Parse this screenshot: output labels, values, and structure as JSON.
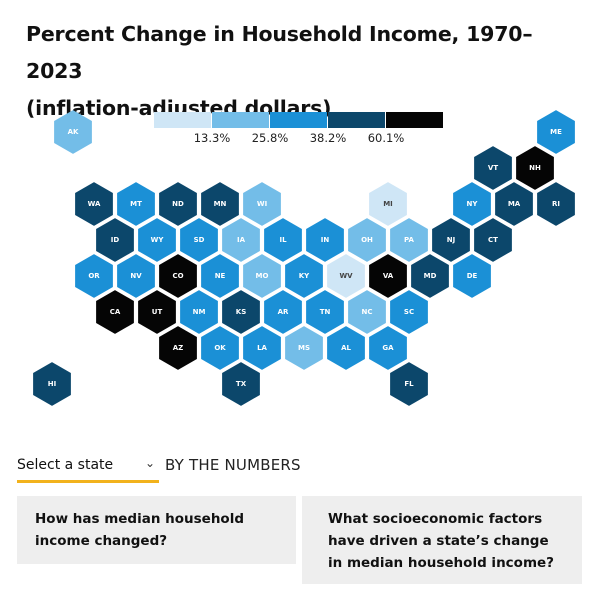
{
  "title_line1": "Percent Change in Household Income, 1970–2023",
  "title_line2": "(inflation-adjusted dollars)",
  "colors": {
    "bin0": "#cfe6f6",
    "bin1": "#73bde8",
    "bin2": "#1b90d6",
    "bin3": "#0c476b",
    "bin4": "#050505",
    "text_on_light": "#444444",
    "text_on_dark": "#ffffff",
    "accent_underline": "#f2b21c",
    "card_bg": "#eeeeee"
  },
  "chart_data": {
    "type": "hex tile choropleth map",
    "legend": {
      "thresholds": [
        "13.3%",
        "25.8%",
        "38.2%",
        "60.1%"
      ],
      "bins": 5
    },
    "states": [
      {
        "abbr": "AK",
        "col": 0.5,
        "row": 0,
        "bin": 1
      },
      {
        "abbr": "ME",
        "col": 12,
        "row": 0,
        "bin": 2
      },
      {
        "abbr": "VT",
        "col": 10.5,
        "row": 1,
        "bin": 3
      },
      {
        "abbr": "NH",
        "col": 11.5,
        "row": 1,
        "bin": 4
      },
      {
        "abbr": "WA",
        "col": 1,
        "row": 2,
        "bin": 3
      },
      {
        "abbr": "MT",
        "col": 2,
        "row": 2,
        "bin": 2
      },
      {
        "abbr": "ND",
        "col": 3,
        "row": 2,
        "bin": 3
      },
      {
        "abbr": "MN",
        "col": 4,
        "row": 2,
        "bin": 3
      },
      {
        "abbr": "WI",
        "col": 5,
        "row": 2,
        "bin": 1
      },
      {
        "abbr": "MI",
        "col": 8,
        "row": 2,
        "bin": 0
      },
      {
        "abbr": "NY",
        "col": 10,
        "row": 2,
        "bin": 2
      },
      {
        "abbr": "MA",
        "col": 11,
        "row": 2,
        "bin": 3
      },
      {
        "abbr": "RI",
        "col": 12,
        "row": 2,
        "bin": 3
      },
      {
        "abbr": "ID",
        "col": 1.5,
        "row": 3,
        "bin": 3
      },
      {
        "abbr": "WY",
        "col": 2.5,
        "row": 3,
        "bin": 2
      },
      {
        "abbr": "SD",
        "col": 3.5,
        "row": 3,
        "bin": 2
      },
      {
        "abbr": "IA",
        "col": 4.5,
        "row": 3,
        "bin": 1
      },
      {
        "abbr": "IL",
        "col": 5.5,
        "row": 3,
        "bin": 2
      },
      {
        "abbr": "IN",
        "col": 6.5,
        "row": 3,
        "bin": 2
      },
      {
        "abbr": "OH",
        "col": 7.5,
        "row": 3,
        "bin": 1
      },
      {
        "abbr": "PA",
        "col": 8.5,
        "row": 3,
        "bin": 1
      },
      {
        "abbr": "NJ",
        "col": 9.5,
        "row": 3,
        "bin": 3
      },
      {
        "abbr": "CT",
        "col": 10.5,
        "row": 3,
        "bin": 3
      },
      {
        "abbr": "OR",
        "col": 1,
        "row": 4,
        "bin": 2
      },
      {
        "abbr": "NV",
        "col": 2,
        "row": 4,
        "bin": 2
      },
      {
        "abbr": "CO",
        "col": 3,
        "row": 4,
        "bin": 4
      },
      {
        "abbr": "NE",
        "col": 4,
        "row": 4,
        "bin": 2
      },
      {
        "abbr": "MO",
        "col": 5,
        "row": 4,
        "bin": 1
      },
      {
        "abbr": "KY",
        "col": 6,
        "row": 4,
        "bin": 2
      },
      {
        "abbr": "WV",
        "col": 7,
        "row": 4,
        "bin": 0
      },
      {
        "abbr": "VA",
        "col": 8,
        "row": 4,
        "bin": 4
      },
      {
        "abbr": "MD",
        "col": 9,
        "row": 4,
        "bin": 3
      },
      {
        "abbr": "DE",
        "col": 10,
        "row": 4,
        "bin": 2
      },
      {
        "abbr": "CA",
        "col": 1.5,
        "row": 5,
        "bin": 4
      },
      {
        "abbr": "UT",
        "col": 2.5,
        "row": 5,
        "bin": 4
      },
      {
        "abbr": "NM",
        "col": 3.5,
        "row": 5,
        "bin": 2
      },
      {
        "abbr": "KS",
        "col": 4.5,
        "row": 5,
        "bin": 3
      },
      {
        "abbr": "AR",
        "col": 5.5,
        "row": 5,
        "bin": 2
      },
      {
        "abbr": "TN",
        "col": 6.5,
        "row": 5,
        "bin": 2
      },
      {
        "abbr": "NC",
        "col": 7.5,
        "row": 5,
        "bin": 1
      },
      {
        "abbr": "SC",
        "col": 8.5,
        "row": 5,
        "bin": 2
      },
      {
        "abbr": "AZ",
        "col": 3,
        "row": 6,
        "bin": 4
      },
      {
        "abbr": "OK",
        "col": 4,
        "row": 6,
        "bin": 2
      },
      {
        "abbr": "LA",
        "col": 5,
        "row": 6,
        "bin": 2
      },
      {
        "abbr": "MS",
        "col": 6,
        "row": 6,
        "bin": 1
      },
      {
        "abbr": "AL",
        "col": 7,
        "row": 6,
        "bin": 2
      },
      {
        "abbr": "GA",
        "col": 8,
        "row": 6,
        "bin": 2
      },
      {
        "abbr": "HI",
        "col": 0,
        "row": 7,
        "bin": 3
      },
      {
        "abbr": "TX",
        "col": 4.5,
        "row": 7,
        "bin": 3
      },
      {
        "abbr": "FL",
        "col": 8.5,
        "row": 7,
        "bin": 3
      }
    ]
  },
  "controls": {
    "select_label": "Select a state",
    "by_the_numbers": "BY THE NUMBERS"
  },
  "cards": [
    {
      "question": "How has median household income changed?"
    },
    {
      "question": "What socioeconomic factors have driven a state’s change in median household income?"
    }
  ]
}
